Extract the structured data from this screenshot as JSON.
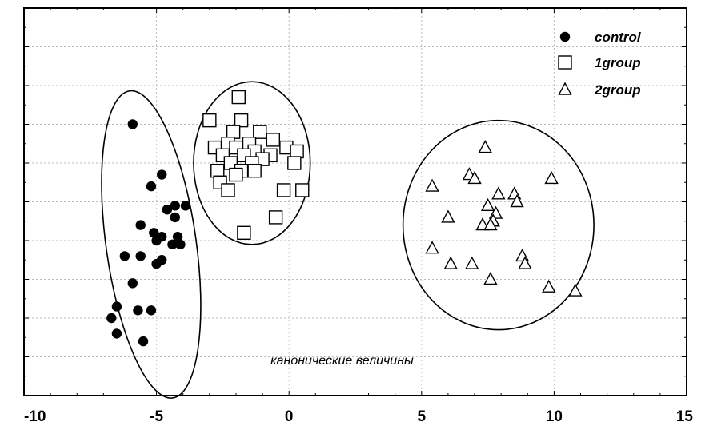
{
  "chart_data": {
    "type": "scatter",
    "title": "",
    "xlabel": "канонические величины",
    "ylabel": "",
    "xlim": [
      -10,
      15
    ],
    "ylim": [
      0,
      10
    ],
    "grid": true,
    "legend_position": "top-right",
    "x_ticks": [
      -10,
      -5,
      0,
      5,
      10,
      15
    ],
    "x_tick_labels": [
      "-10",
      "-5",
      "0",
      "5",
      "10",
      "15"
    ],
    "series": [
      {
        "name": "control",
        "marker": "filled-circle",
        "color": "#000000",
        "points": [
          [
            -5.9,
            7.0
          ],
          [
            -4.8,
            5.7
          ],
          [
            -5.2,
            5.4
          ],
          [
            -4.6,
            4.8
          ],
          [
            -4.3,
            4.9
          ],
          [
            -3.9,
            4.9
          ],
          [
            -4.3,
            4.6
          ],
          [
            -5.6,
            4.4
          ],
          [
            -5.1,
            4.2
          ],
          [
            -4.8,
            4.1
          ],
          [
            -4.2,
            4.1
          ],
          [
            -4.1,
            3.9
          ],
          [
            -5.0,
            4.0
          ],
          [
            -4.4,
            3.9
          ],
          [
            -6.2,
            3.6
          ],
          [
            -5.6,
            3.6
          ],
          [
            -4.8,
            3.5
          ],
          [
            -5.0,
            3.4
          ],
          [
            -5.9,
            2.9
          ],
          [
            -6.5,
            2.3
          ],
          [
            -5.7,
            2.2
          ],
          [
            -5.2,
            2.2
          ],
          [
            -6.7,
            2.0
          ],
          [
            -6.5,
            1.6
          ],
          [
            -5.5,
            1.4
          ]
        ]
      },
      {
        "name": "1group",
        "marker": "open-square",
        "color": "#000000",
        "points": [
          [
            -1.9,
            7.7
          ],
          [
            -3.0,
            7.1
          ],
          [
            -1.8,
            7.1
          ],
          [
            -2.1,
            6.8
          ],
          [
            -1.1,
            6.8
          ],
          [
            -0.6,
            6.6
          ],
          [
            -2.3,
            6.5
          ],
          [
            -1.5,
            6.5
          ],
          [
            -2.8,
            6.4
          ],
          [
            -2.0,
            6.4
          ],
          [
            -0.1,
            6.4
          ],
          [
            -1.3,
            6.3
          ],
          [
            -0.7,
            6.2
          ],
          [
            -2.5,
            6.2
          ],
          [
            -1.7,
            6.2
          ],
          [
            -1.0,
            6.1
          ],
          [
            0.3,
            6.3
          ],
          [
            -2.2,
            6.0
          ],
          [
            0.2,
            6.0
          ],
          [
            -1.4,
            6.0
          ],
          [
            -2.7,
            5.8
          ],
          [
            -1.8,
            5.8
          ],
          [
            -1.3,
            5.8
          ],
          [
            -2.0,
            5.7
          ],
          [
            -2.6,
            5.5
          ],
          [
            -0.2,
            5.3
          ],
          [
            0.5,
            5.3
          ],
          [
            -2.3,
            5.3
          ],
          [
            -0.5,
            4.6
          ],
          [
            -1.7,
            4.2
          ]
        ]
      },
      {
        "name": "2group",
        "marker": "open-triangle",
        "color": "#000000",
        "points": [
          [
            7.4,
            6.4
          ],
          [
            6.8,
            5.7
          ],
          [
            7.0,
            5.6
          ],
          [
            9.9,
            5.6
          ],
          [
            5.4,
            5.4
          ],
          [
            7.9,
            5.2
          ],
          [
            8.5,
            5.2
          ],
          [
            7.5,
            4.9
          ],
          [
            8.6,
            5.0
          ],
          [
            6.0,
            4.6
          ],
          [
            7.8,
            4.7
          ],
          [
            7.7,
            4.5
          ],
          [
            7.3,
            4.4
          ],
          [
            7.6,
            4.4
          ],
          [
            5.4,
            3.8
          ],
          [
            8.8,
            3.6
          ],
          [
            6.1,
            3.4
          ],
          [
            6.9,
            3.4
          ],
          [
            8.9,
            3.4
          ],
          [
            7.6,
            3.0
          ],
          [
            9.8,
            2.8
          ],
          [
            10.8,
            2.7
          ]
        ]
      }
    ],
    "ellipses": [
      {
        "group": "control",
        "cx": -5.2,
        "cy": 3.9,
        "rx": 1.7,
        "ry": 4.0,
        "rotation_deg": -8
      },
      {
        "group": "1group",
        "cx": -1.4,
        "cy": 6.0,
        "rx": 2.2,
        "ry": 2.1,
        "rotation_deg": 0
      },
      {
        "group": "2group",
        "cx": 7.9,
        "cy": 4.4,
        "rx": 3.6,
        "ry": 2.7,
        "rotation_deg": 0
      }
    ]
  }
}
